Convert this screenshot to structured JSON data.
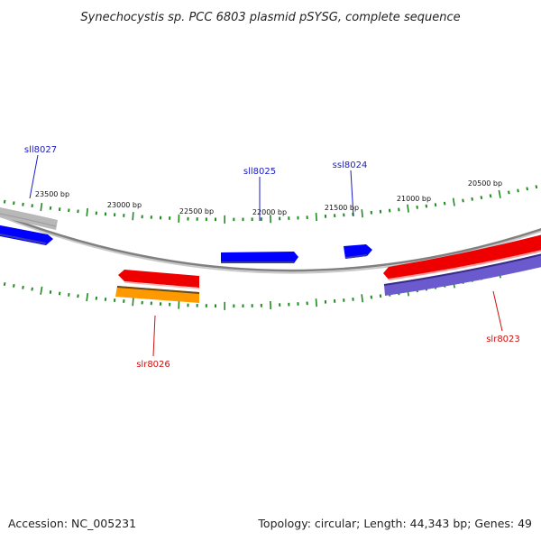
{
  "title": "Synechocystis sp. PCC 6803 plasmid pSYSG, complete sequence",
  "footer": {
    "accession": "Accession: NC_005231",
    "summary": "Topology: circular; Length: 44,343 bp; Genes: 49"
  },
  "colors": {
    "backbone": "#808080",
    "tick": "#1e8c1e",
    "forward_label": "#1a1acc",
    "reverse_label": "#cc1111"
  },
  "tick_labels": [
    "23500 bp",
    "23000 bp",
    "22500 bp",
    "22000 bp",
    "21500 bp",
    "21000 bp",
    "20500 bp"
  ],
  "genes": [
    {
      "name": "sll8027",
      "strand": "forward",
      "color": "#0000ff"
    },
    {
      "name": "sll8025",
      "strand": "forward",
      "color": "#0000ff"
    },
    {
      "name": "ssl8024",
      "strand": "forward",
      "color": "#0000ff"
    },
    {
      "name": "slr8026",
      "strand": "reverse",
      "color": "#ee0000"
    },
    {
      "name": "slr8023",
      "strand": "reverse",
      "color": "#ee0000"
    }
  ],
  "features": [
    {
      "name": "upper-grey-feature",
      "color": "#b8b8b8"
    },
    {
      "name": "orange-feature",
      "color": "#ff9900"
    },
    {
      "name": "purple-feature",
      "color": "#6a5acd"
    }
  ]
}
